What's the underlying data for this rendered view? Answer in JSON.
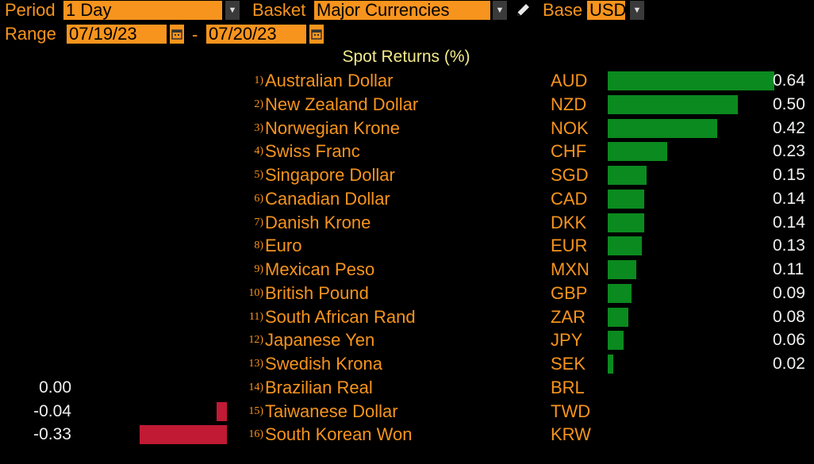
{
  "toolbar": {
    "period_label": "Period",
    "period_value": "1 Day",
    "basket_label": "Basket",
    "basket_value": "Major Currencies",
    "base_label": "Base",
    "base_value": "USD",
    "range_label": "Range",
    "range_start": "07/19/23",
    "range_sep": "-",
    "range_end": "07/20/23",
    "icons": [
      "dropdown-arrow-icon",
      "pencil-icon",
      "calendar-icon"
    ]
  },
  "chart_data": {
    "type": "bar",
    "title": "Spot Returns (%)",
    "orientation": "horizontal",
    "colors": {
      "positive": "#0b8a1f",
      "negative": "#c01a34",
      "text": "#f7941d",
      "title": "#f2ea8c",
      "value": "#f0f0f0"
    },
    "rows": [
      {
        "rank": "1)",
        "name": "Australian Dollar",
        "code": "AUD",
        "value": 0.64,
        "label": "0.64"
      },
      {
        "rank": "2)",
        "name": "New Zealand Dollar",
        "code": "NZD",
        "value": 0.5,
        "label": "0.50"
      },
      {
        "rank": "3)",
        "name": "Norwegian Krone",
        "code": "NOK",
        "value": 0.42,
        "label": "0.42"
      },
      {
        "rank": "4)",
        "name": "Swiss Franc",
        "code": "CHF",
        "value": 0.23,
        "label": "0.23"
      },
      {
        "rank": "5)",
        "name": "Singapore Dollar",
        "code": "SGD",
        "value": 0.15,
        "label": "0.15"
      },
      {
        "rank": "6)",
        "name": "Canadian Dollar",
        "code": "CAD",
        "value": 0.14,
        "label": "0.14"
      },
      {
        "rank": "7)",
        "name": "Danish Krone",
        "code": "DKK",
        "value": 0.14,
        "label": "0.14"
      },
      {
        "rank": "8)",
        "name": "Euro",
        "code": "EUR",
        "value": 0.13,
        "label": "0.13"
      },
      {
        "rank": "9)",
        "name": "Mexican Peso",
        "code": "MXN",
        "value": 0.11,
        "label": "0.11"
      },
      {
        "rank": "10)",
        "name": "British Pound",
        "code": "GBP",
        "value": 0.09,
        "label": "0.09"
      },
      {
        "rank": "11)",
        "name": "South African Rand",
        "code": "ZAR",
        "value": 0.08,
        "label": "0.08"
      },
      {
        "rank": "12)",
        "name": "Japanese Yen",
        "code": "JPY",
        "value": 0.06,
        "label": "0.06"
      },
      {
        "rank": "13)",
        "name": "Swedish Krona",
        "code": "SEK",
        "value": 0.02,
        "label": "0.02"
      },
      {
        "rank": "14)",
        "name": "Brazilian Real",
        "code": "BRL",
        "value": 0.0,
        "label": "0.00"
      },
      {
        "rank": "15)",
        "name": "Taiwanese Dollar",
        "code": "TWD",
        "value": -0.04,
        "label": "-0.04"
      },
      {
        "rank": "16)",
        "name": "South Korean Won",
        "code": "KRW",
        "value": -0.33,
        "label": "-0.33"
      }
    ]
  }
}
